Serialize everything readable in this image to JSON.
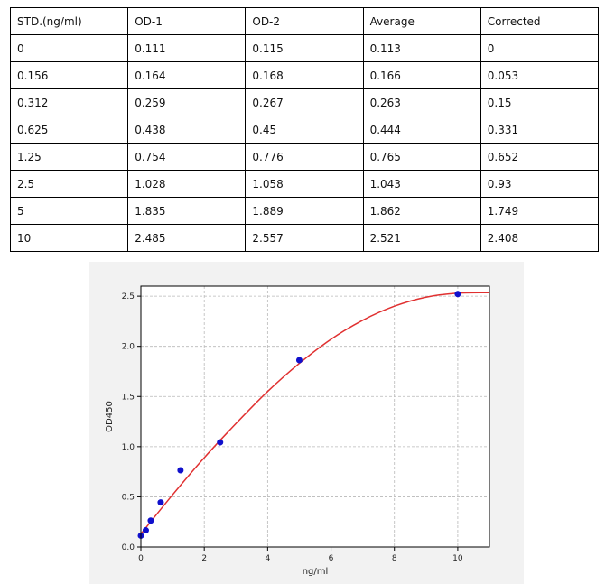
{
  "table": {
    "headers": [
      "STD.(ng/ml)",
      "OD-1",
      "OD-2",
      "Average",
      "Corrected"
    ],
    "rows": [
      [
        "0",
        "0.111",
        "0.115",
        "0.113",
        "0"
      ],
      [
        "0.156",
        "0.164",
        "0.168",
        "0.166",
        "0.053"
      ],
      [
        "0.312",
        "0.259",
        "0.267",
        "0.263",
        "0.15"
      ],
      [
        "0.625",
        "0.438",
        "0.45",
        "0.444",
        "0.331"
      ],
      [
        "1.25",
        "0.754",
        "0.776",
        "0.765",
        "0.652"
      ],
      [
        "2.5",
        "1.028",
        "1.058",
        "1.043",
        "0.93"
      ],
      [
        "5",
        "1.835",
        "1.889",
        "1.862",
        "1.749"
      ],
      [
        "10",
        "2.485",
        "2.557",
        "2.521",
        "2.408"
      ]
    ]
  },
  "chart_data": {
    "type": "scatter",
    "title": "",
    "xlabel": "ng/ml",
    "ylabel": "OD450",
    "xlim": [
      0,
      11
    ],
    "ylim": [
      0,
      2.6
    ],
    "xticks": [
      "0",
      "2",
      "4",
      "6",
      "8",
      "10"
    ],
    "yticks": [
      "0.0",
      "0.5",
      "1.0",
      "1.5",
      "2.0",
      "2.5"
    ],
    "grid": true,
    "points": {
      "x": [
        0,
        0.156,
        0.312,
        0.625,
        1.25,
        2.5,
        5,
        10
      ],
      "y": [
        0.113,
        0.166,
        0.263,
        0.444,
        0.765,
        1.043,
        1.862,
        2.521
      ],
      "color": "#1010cc"
    },
    "fit_curve": {
      "color": "#e03030",
      "x": [
        0,
        1,
        2,
        3,
        4,
        5,
        6,
        7,
        8,
        9,
        10,
        11
      ],
      "y": [
        0.13,
        0.52,
        0.89,
        1.23,
        1.55,
        1.83,
        2.07,
        2.26,
        2.4,
        2.49,
        2.53,
        2.535
      ]
    },
    "plot_background": "#ffffff",
    "panel_background": "#f2f2f2"
  }
}
